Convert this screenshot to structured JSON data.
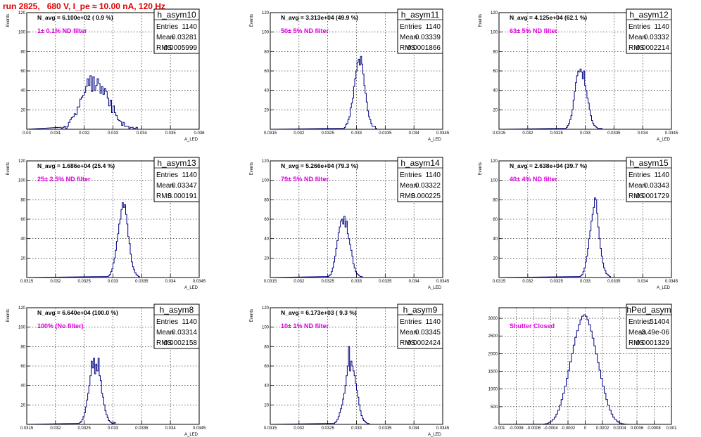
{
  "header": {
    "title": "run 2825,   680 V, I_pe ≈ 10.00 nA, 120 Hz"
  },
  "chart_data": [
    {
      "type": "histogram",
      "name": "h_asym10",
      "entries": "1140",
      "mean": "0.03281",
      "rms": "0.0005999",
      "navg_text": "N_avg = 6.100e+02 ( 0.9 %)",
      "filter_text": "1± 0.1% ND filter",
      "xlabel": "A_LED",
      "ylabel": "Events",
      "xlim": [
        0.03,
        0.036
      ],
      "ylim": [
        0,
        120
      ],
      "x_ticks": [
        0.03,
        0.031,
        0.032,
        0.033,
        0.034,
        0.035,
        0.036
      ],
      "x_tick_labels": [
        "0.03",
        "0.031",
        "0.032",
        "0.033",
        "0.034",
        "0.035",
        "0.036"
      ],
      "y_ticks": [
        20,
        40,
        60,
        80,
        100,
        120
      ],
      "y_tick_labels": [
        "20",
        "40",
        "60",
        "80",
        "100",
        "120"
      ],
      "bins_x0": 0.03115,
      "bin_width": 5e-05,
      "counts": [
        2,
        1,
        2,
        3,
        1,
        3,
        7,
        10,
        12,
        13,
        16,
        15,
        23,
        23,
        31,
        33,
        35,
        38,
        44,
        52,
        45,
        55,
        39,
        54,
        40,
        45,
        52,
        47,
        37,
        44,
        36,
        42,
        39,
        32,
        24,
        30,
        17,
        24,
        17,
        14,
        10,
        9,
        8,
        4,
        7,
        3,
        3,
        3,
        1,
        2,
        2,
        1,
        1,
        2
      ]
    },
    {
      "type": "histogram",
      "name": "h_asym11",
      "entries": "1140",
      "mean": "0.03339",
      "rms": "0.0001866",
      "navg_text": "N_avg = 3.313e+04 (49.9 %)",
      "filter_text": "50± 5% ND filter",
      "xlabel": "A_LED",
      "ylabel": "Events",
      "xlim": [
        0.0315,
        0.0345
      ],
      "ylim": [
        0,
        120
      ],
      "x_ticks": [
        0.0315,
        0.032,
        0.0325,
        0.033,
        0.0335,
        0.034,
        0.0345
      ],
      "x_tick_labels": [
        "0.0315",
        "0.032",
        "0.0325",
        "0.033",
        "0.0335",
        "0.034",
        "0.0345"
      ],
      "y_ticks": [
        20,
        40,
        60,
        80,
        100,
        120
      ],
      "y_tick_labels": [
        "20",
        "40",
        "60",
        "80",
        "100",
        "120"
      ],
      "bins_x0": 0.03275,
      "bin_width": 2e-05,
      "counts": [
        1,
        1,
        2,
        5,
        6,
        10,
        13,
        22,
        27,
        32,
        44,
        52,
        60,
        69,
        72,
        66,
        75,
        67,
        57,
        45,
        37,
        28,
        19,
        13,
        10,
        6,
        3,
        3,
        3,
        1
      ]
    },
    {
      "type": "histogram",
      "name": "h_asym12",
      "entries": "1140",
      "mean": "0.03332",
      "rms": "0.0002214",
      "navg_text": "N_avg = 4.125e+04 (62.1 %)",
      "filter_text": "63± 5% ND filter",
      "xlabel": "A_LED",
      "ylabel": "Events",
      "xlim": [
        0.0315,
        0.0345
      ],
      "ylim": [
        0,
        120
      ],
      "x_ticks": [
        0.0315,
        0.032,
        0.0325,
        0.033,
        0.0335,
        0.034,
        0.0345
      ],
      "x_tick_labels": [
        "0.0315",
        "0.032",
        "0.0325",
        "0.033",
        "0.0335",
        "0.034",
        "0.0345"
      ],
      "y_ticks": [
        20,
        40,
        60,
        80,
        100,
        120
      ],
      "y_tick_labels": [
        "20",
        "40",
        "60",
        "80",
        "100",
        "120"
      ],
      "bins_x0": 0.03265,
      "bin_width": 2e-05,
      "counts": [
        1,
        2,
        4,
        6,
        10,
        14,
        20,
        30,
        39,
        48,
        55,
        60,
        59,
        62,
        59,
        52,
        60,
        45,
        40,
        32,
        27,
        20,
        14,
        9,
        6,
        4,
        3,
        2,
        1,
        1,
        1,
        1
      ]
    },
    {
      "type": "histogram",
      "name": "h_asym13",
      "entries": "1140",
      "mean": "0.03347",
      "rms": "0.000191",
      "navg_text": "N_avg = 1.686e+04 (25.4 %)",
      "filter_text": "25± 2.5% ND filter",
      "xlabel": "A_LED",
      "ylabel": "Events",
      "xlim": [
        0.0315,
        0.0345
      ],
      "ylim": [
        0,
        120
      ],
      "x_ticks": [
        0.0315,
        0.032,
        0.0325,
        0.033,
        0.0335,
        0.034,
        0.0345
      ],
      "x_tick_labels": [
        "0.0315",
        "0.032",
        "0.0325",
        "0.033",
        "0.0335",
        "0.034",
        "0.0345"
      ],
      "y_ticks": [
        20,
        40,
        60,
        80,
        100,
        120
      ],
      "y_tick_labels": [
        "20",
        "40",
        "60",
        "80",
        "100",
        "120"
      ],
      "bins_x0": 0.0329,
      "bin_width": 2e-05,
      "counts": [
        1,
        2,
        3,
        6,
        9,
        15,
        20,
        28,
        37,
        45,
        55,
        60,
        70,
        77,
        72,
        75,
        65,
        55,
        42,
        35,
        24,
        16,
        11,
        8,
        5,
        3,
        2,
        1
      ]
    },
    {
      "type": "histogram",
      "name": "h_asym14",
      "entries": "1140",
      "mean": "0.03322",
      "rms": "0.000225",
      "navg_text": "N_avg = 5.266e+04 (79.3 %)",
      "filter_text": "79± 5% ND filter",
      "xlabel": "A_LED",
      "ylabel": "Events",
      "xlim": [
        0.0315,
        0.0345
      ],
      "ylim": [
        0,
        120
      ],
      "x_ticks": [
        0.0315,
        0.032,
        0.0325,
        0.033,
        0.0335,
        0.034,
        0.0345
      ],
      "x_tick_labels": [
        "0.0315",
        "0.032",
        "0.0325",
        "0.033",
        "0.0335",
        "0.034",
        "0.0345"
      ],
      "y_ticks": [
        20,
        40,
        60,
        80,
        100,
        120
      ],
      "y_tick_labels": [
        "20",
        "40",
        "60",
        "80",
        "100",
        "120"
      ],
      "bins_x0": 0.0325,
      "bin_width": 2e-05,
      "counts": [
        1,
        2,
        3,
        6,
        10,
        16,
        22,
        30,
        38,
        46,
        52,
        58,
        60,
        55,
        63,
        52,
        58,
        45,
        40,
        34,
        28,
        22,
        14,
        10,
        6,
        4,
        3,
        2,
        1,
        1
      ]
    },
    {
      "type": "histogram",
      "name": "h_asym15",
      "entries": "1140",
      "mean": "0.03343",
      "rms": "0.0001729",
      "navg_text": "N_avg = 2.638e+04 (39.7 %)",
      "filter_text": "40± 4% ND filter",
      "xlabel": "A_LED",
      "ylabel": "Events",
      "xlim": [
        0.0315,
        0.0345
      ],
      "ylim": [
        0,
        120
      ],
      "x_ticks": [
        0.0315,
        0.032,
        0.0325,
        0.033,
        0.0335,
        0.034,
        0.0345
      ],
      "x_tick_labels": [
        "0.0315",
        "0.032",
        "0.0325",
        "0.033",
        "0.0335",
        "0.034",
        "0.0345"
      ],
      "y_ticks": [
        20,
        40,
        60,
        80,
        100,
        120
      ],
      "y_tick_labels": [
        "20",
        "40",
        "60",
        "80",
        "100",
        "120"
      ],
      "bins_x0": 0.0329,
      "bin_width": 2e-05,
      "counts": [
        1,
        2,
        3,
        6,
        10,
        16,
        22,
        30,
        40,
        48,
        58,
        65,
        72,
        82,
        80,
        66,
        52,
        40,
        30,
        22,
        15,
        10,
        7,
        4,
        3,
        2,
        1
      ]
    },
    {
      "type": "histogram",
      "name": "h_asym8",
      "entries": "1140",
      "mean": "0.03314",
      "rms": "0.0002158",
      "navg_text": "N_avg = 6.640e+04 (100.0 %)",
      "filter_text": "100% (No filter)",
      "xlabel": "A_LED",
      "ylabel": "Events",
      "xlim": [
        0.0315,
        0.0345
      ],
      "ylim": [
        0,
        120
      ],
      "x_ticks": [
        0.0315,
        0.032,
        0.0325,
        0.033,
        0.0335,
        0.034,
        0.0345
      ],
      "x_tick_labels": [
        "0.0315",
        "0.032",
        "0.0325",
        "0.033",
        "0.0335",
        "0.034",
        "0.0345"
      ],
      "y_ticks": [
        20,
        40,
        60,
        80,
        100,
        120
      ],
      "y_tick_labels": [
        "20",
        "40",
        "60",
        "80",
        "100",
        "120"
      ],
      "bins_x0": 0.0324,
      "bin_width": 2e-05,
      "counts": [
        1,
        2,
        3,
        5,
        8,
        12,
        18,
        25,
        32,
        40,
        50,
        65,
        58,
        68,
        52,
        62,
        55,
        68,
        50,
        45,
        32,
        28,
        20,
        14,
        10,
        7,
        4,
        3,
        2,
        1,
        1,
        2
      ]
    },
    {
      "type": "histogram",
      "name": "h_asym9",
      "entries": "1140",
      "mean": "0.03345",
      "rms": "0.0002424",
      "navg_text": "N_avg = 6.173e+03 ( 9.3 %)",
      "filter_text": "10± 1% ND filter",
      "xlabel": "A_LED",
      "ylabel": "Events",
      "xlim": [
        0.0315,
        0.0345
      ],
      "ylim": [
        0,
        120
      ],
      "x_ticks": [
        0.0315,
        0.032,
        0.0325,
        0.033,
        0.0335,
        0.034,
        0.0345
      ],
      "x_tick_labels": [
        "0.0315",
        "0.032",
        "0.0325",
        "0.033",
        "0.0335",
        "0.034",
        "0.0345"
      ],
      "y_ticks": [
        20,
        40,
        60,
        80,
        100,
        120
      ],
      "y_tick_labels": [
        "20",
        "40",
        "60",
        "80",
        "100",
        "120"
      ],
      "bins_x0": 0.0326,
      "bin_width": 2e-05,
      "counts": [
        1,
        2,
        3,
        5,
        8,
        12,
        16,
        20,
        26,
        32,
        40,
        50,
        60,
        80,
        55,
        65,
        60,
        55,
        50,
        42,
        35,
        28,
        20,
        14,
        9,
        6,
        4,
        3,
        2,
        1,
        1
      ]
    },
    {
      "type": "histogram",
      "name": "hPed_asym",
      "entries": "51404",
      "mean": "-3.49e-06",
      "rms": "0.0001329",
      "navg_text": "",
      "filter_text": "Shutter Closed",
      "xlabel": "",
      "ylabel": "",
      "xlim": [
        -0.001,
        0.001
      ],
      "ylim": [
        0,
        3300
      ],
      "x_ticks": [
        -0.001,
        -0.0008,
        -0.0006,
        -0.0004,
        -0.0002,
        0,
        0.0002,
        0.0004,
        0.0006,
        0.0008,
        0.001
      ],
      "x_tick_labels": [
        "-0.001",
        "-0.0008",
        "-0.0006",
        "-0.0004",
        "-0.0002",
        "0",
        "0.0002",
        "0.0004",
        "0.0006",
        "0.0008",
        "0.001"
      ],
      "y_ticks": [
        500,
        1000,
        1500,
        2000,
        2500,
        3000
      ],
      "y_tick_labels": [
        "500",
        "1000",
        "1500",
        "2000",
        "2500",
        "3000"
      ],
      "bins_x0": -0.0005,
      "bin_width": 2e-05,
      "counts": [
        5,
        10,
        20,
        35,
        60,
        95,
        140,
        200,
        290,
        400,
        540,
        700,
        880,
        1080,
        1300,
        1530,
        1770,
        2000,
        2240,
        2460,
        2650,
        2820,
        2960,
        3060,
        3100,
        3060,
        2960,
        2820,
        2640,
        2440,
        2220,
        1990,
        1760,
        1530,
        1300,
        1080,
        880,
        700,
        540,
        400,
        290,
        200,
        140,
        95,
        60,
        35,
        20,
        10,
        5,
        2
      ]
    }
  ]
}
